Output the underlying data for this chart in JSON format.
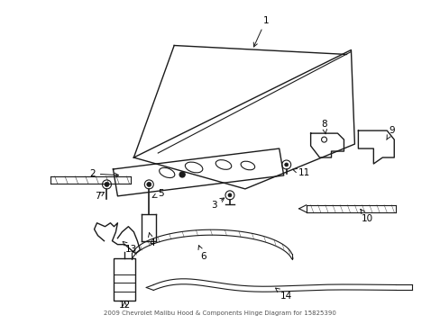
{
  "title": "2009 Chevrolet Malibu Hood & Components Hinge Diagram for 15825390",
  "bg_color": "#ffffff",
  "lc": "#1a1a1a",
  "tc": "#000000",
  "figsize": [
    4.89,
    3.6
  ],
  "dpi": 100
}
